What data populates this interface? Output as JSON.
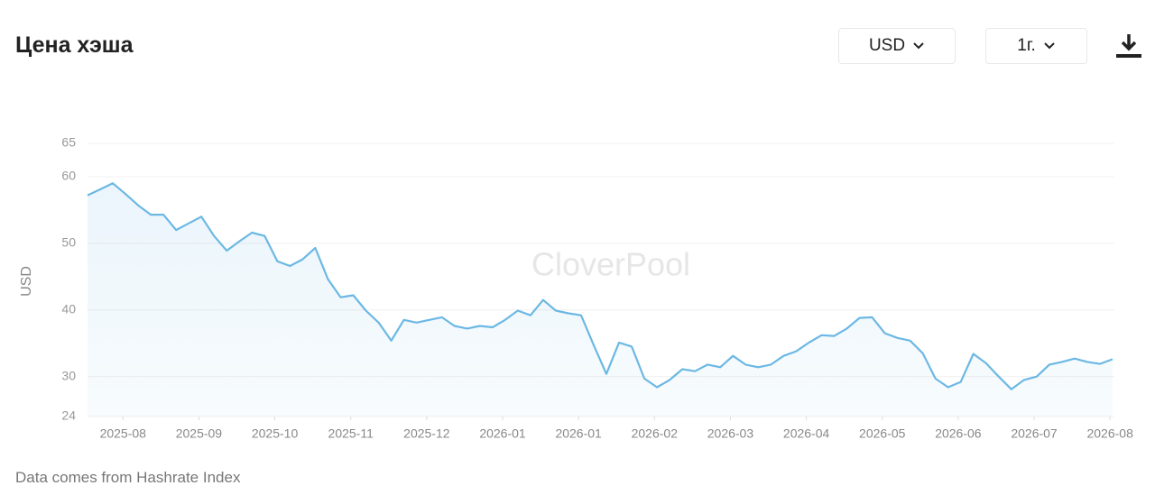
{
  "header": {
    "title": "Цена хэша",
    "currency": "USD",
    "period": "1г."
  },
  "footer": {
    "source": "Data comes from Hashrate Index"
  },
  "chart_data": {
    "type": "line",
    "y_label": "USD",
    "watermark": "CloverPool",
    "color": "#6cb8e4",
    "grid": true,
    "ylim": [
      24,
      65
    ],
    "yticks": [
      24,
      30,
      40,
      50,
      60,
      65
    ],
    "xlim": [
      0,
      405
    ],
    "xticks": [
      {
        "value": 14,
        "label": "2025-08"
      },
      {
        "value": 44,
        "label": "2025-09"
      },
      {
        "value": 74,
        "label": "2025-10"
      },
      {
        "value": 104,
        "label": "2025-11"
      },
      {
        "value": 134,
        "label": "2025-12"
      },
      {
        "value": 164,
        "label": "2026-01"
      },
      {
        "value": 194,
        "label": "2026-01"
      },
      {
        "value": 224,
        "label": "2026-02"
      },
      {
        "value": 254,
        "label": "2026-03"
      },
      {
        "value": 284,
        "label": "2026-04"
      },
      {
        "value": 314,
        "label": "2026-05"
      },
      {
        "value": 344,
        "label": "2026-06"
      },
      {
        "value": 374,
        "label": "2026-07"
      },
      {
        "value": 404,
        "label": "2026-08"
      }
    ],
    "x": [
      0,
      5,
      10,
      15,
      20,
      25,
      30,
      35,
      40,
      45,
      50,
      55,
      60,
      65,
      70,
      75,
      80,
      85,
      90,
      95,
      100,
      105,
      110,
      115,
      120,
      125,
      130,
      135,
      140,
      145,
      150,
      155,
      160,
      165,
      170,
      175,
      180,
      185,
      190,
      195,
      200,
      205,
      210,
      215,
      220,
      225,
      230,
      235,
      240,
      245,
      250,
      255,
      260,
      265,
      270,
      275,
      280,
      285,
      290,
      295,
      300,
      305,
      310,
      315,
      320,
      325,
      330,
      335,
      340,
      345,
      350,
      355,
      360,
      365,
      370,
      375,
      380,
      385,
      390,
      395,
      400,
      405
    ],
    "values": [
      57.2,
      58.1,
      59,
      57.4,
      55.7,
      54.3,
      54.3,
      52,
      53,
      54,
      51.1,
      48.9,
      50.3,
      51.6,
      51.1,
      47.3,
      46.6,
      47.6,
      49.3,
      44.6,
      41.9,
      42.2,
      39.9,
      38.1,
      35.4,
      38.5,
      38.1,
      38.5,
      38.9,
      37.6,
      37.2,
      37.6,
      37.4,
      38.5,
      39.9,
      39.2,
      41.5,
      39.9,
      39.5,
      39.2,
      34.7,
      30.4,
      35.1,
      34.5,
      29.7,
      28.4,
      29.5,
      31.1,
      30.8,
      31.8,
      31.4,
      33.1,
      31.8,
      31.4,
      31.8,
      33.1,
      33.8,
      35.1,
      36.2,
      36.1,
      37.2,
      38.8,
      38.9,
      36.5,
      35.8,
      35.4,
      33.5,
      29.7,
      28.4,
      29.2,
      33.4,
      32,
      30,
      28.1,
      29.5,
      30,
      31.8,
      32.2,
      32.7,
      32.2,
      31.9,
      32.6
    ]
  }
}
